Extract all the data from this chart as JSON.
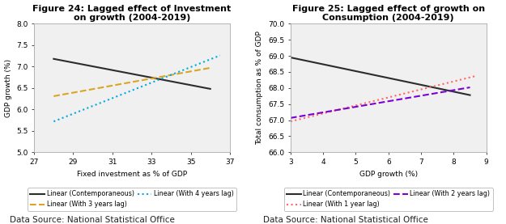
{
  "fig1": {
    "title": "Figure 24: Lagged effect of Investment\non growth (2004-2019)",
    "xlabel": "Fixed investment as % of GDP",
    "ylabel": "GDP growth (%)",
    "xlim": [
      27.0,
      37.0
    ],
    "ylim": [
      5.0,
      8.0
    ],
    "xticks": [
      27.0,
      29.0,
      31.0,
      33.0,
      35.0,
      37.0
    ],
    "yticks": [
      5.0,
      5.5,
      6.0,
      6.5,
      7.0,
      7.5,
      8.0
    ],
    "lines": [
      {
        "label": "Linear (Contemporaneous)",
        "x": [
          28.0,
          36.0
        ],
        "y": [
          7.18,
          6.48
        ],
        "color": "#2c2c2c",
        "lw": 1.5,
        "linestyle": "solid"
      },
      {
        "label": "Linear (With 3 years lag)",
        "x": [
          28.0,
          36.0
        ],
        "y": [
          6.31,
          6.97
        ],
        "color": "#DAA520",
        "lw": 1.5,
        "linestyle": "dashed"
      },
      {
        "label": "Linear (With 4 years lag)",
        "x": [
          28.0,
          36.5
        ],
        "y": [
          5.72,
          7.26
        ],
        "color": "#00AADD",
        "lw": 1.5,
        "linestyle": "dotted"
      }
    ],
    "legend_order": [
      0,
      1,
      2
    ],
    "datasource": "Data Source: National Statistical Office"
  },
  "fig2": {
    "title": "Figure 25: Lagged effect of growth on\nConsumption (2004-2019)",
    "xlabel": "GDP growth (%)",
    "ylabel": "Total consumption as % of GDP",
    "xlim": [
      3.0,
      9.0
    ],
    "ylim": [
      66.0,
      70.0
    ],
    "xticks": [
      3.0,
      4.0,
      5.0,
      6.0,
      7.0,
      8.0,
      9.0
    ],
    "yticks": [
      66.0,
      66.5,
      67.0,
      67.5,
      68.0,
      68.5,
      69.0,
      69.5,
      70.0
    ],
    "lines": [
      {
        "label": "Linear (Contemporaneous)",
        "x": [
          3.0,
          8.5
        ],
        "y": [
          68.95,
          67.78
        ],
        "color": "#2c2c2c",
        "lw": 1.5,
        "linestyle": "solid"
      },
      {
        "label": "Linear (With 1 year lag)",
        "x": [
          3.0,
          8.7
        ],
        "y": [
          66.96,
          68.38
        ],
        "color": "#FF6666",
        "lw": 1.5,
        "linestyle": "dotted"
      },
      {
        "label": "Linear (With 2 years lag)",
        "x": [
          3.0,
          8.5
        ],
        "y": [
          67.07,
          68.02
        ],
        "color": "#7B00D4",
        "lw": 1.5,
        "linestyle": "dashed"
      }
    ],
    "legend_order": [
      0,
      1,
      2
    ],
    "datasource": "Data Source: National Statistical Office"
  },
  "plot_bg": "#f0f0f0",
  "background_color": "#ffffff",
  "title_fontsize": 8,
  "label_fontsize": 6.5,
  "tick_fontsize": 6.5,
  "legend_fontsize": 5.8,
  "datasource_fontsize": 7.5
}
